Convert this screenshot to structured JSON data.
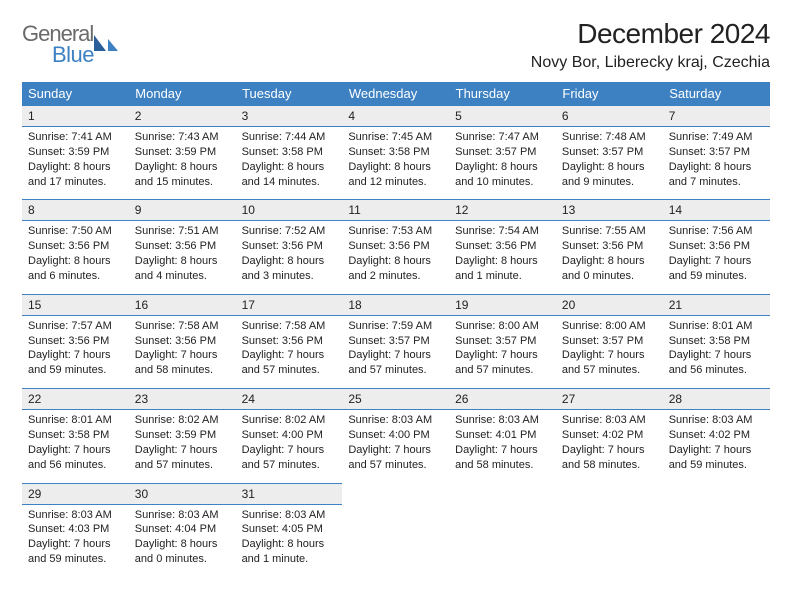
{
  "brand": {
    "word1": "General",
    "word2": "Blue",
    "accent_color": "#3d81c2",
    "gray": "#6a6a6a"
  },
  "title": "December 2024",
  "location": "Novy Bor, Liberecky kraj, Czechia",
  "colors": {
    "header_bg": "#3d81c2",
    "header_fg": "#ffffff",
    "dayhead_bg": "#ededed",
    "border": "#3d81c2",
    "text": "#222222",
    "page_bg": "#ffffff"
  },
  "days_of_week": [
    "Sunday",
    "Monday",
    "Tuesday",
    "Wednesday",
    "Thursday",
    "Friday",
    "Saturday"
  ],
  "weeks": [
    [
      {
        "n": "1",
        "sunrise": "7:41 AM",
        "sunset": "3:59 PM",
        "daylight": "8 hours and 17 minutes."
      },
      {
        "n": "2",
        "sunrise": "7:43 AM",
        "sunset": "3:59 PM",
        "daylight": "8 hours and 15 minutes."
      },
      {
        "n": "3",
        "sunrise": "7:44 AM",
        "sunset": "3:58 PM",
        "daylight": "8 hours and 14 minutes."
      },
      {
        "n": "4",
        "sunrise": "7:45 AM",
        "sunset": "3:58 PM",
        "daylight": "8 hours and 12 minutes."
      },
      {
        "n": "5",
        "sunrise": "7:47 AM",
        "sunset": "3:57 PM",
        "daylight": "8 hours and 10 minutes."
      },
      {
        "n": "6",
        "sunrise": "7:48 AM",
        "sunset": "3:57 PM",
        "daylight": "8 hours and 9 minutes."
      },
      {
        "n": "7",
        "sunrise": "7:49 AM",
        "sunset": "3:57 PM",
        "daylight": "8 hours and 7 minutes."
      }
    ],
    [
      {
        "n": "8",
        "sunrise": "7:50 AM",
        "sunset": "3:56 PM",
        "daylight": "8 hours and 6 minutes."
      },
      {
        "n": "9",
        "sunrise": "7:51 AM",
        "sunset": "3:56 PM",
        "daylight": "8 hours and 4 minutes."
      },
      {
        "n": "10",
        "sunrise": "7:52 AM",
        "sunset": "3:56 PM",
        "daylight": "8 hours and 3 minutes."
      },
      {
        "n": "11",
        "sunrise": "7:53 AM",
        "sunset": "3:56 PM",
        "daylight": "8 hours and 2 minutes."
      },
      {
        "n": "12",
        "sunrise": "7:54 AM",
        "sunset": "3:56 PM",
        "daylight": "8 hours and 1 minute."
      },
      {
        "n": "13",
        "sunrise": "7:55 AM",
        "sunset": "3:56 PM",
        "daylight": "8 hours and 0 minutes."
      },
      {
        "n": "14",
        "sunrise": "7:56 AM",
        "sunset": "3:56 PM",
        "daylight": "7 hours and 59 minutes."
      }
    ],
    [
      {
        "n": "15",
        "sunrise": "7:57 AM",
        "sunset": "3:56 PM",
        "daylight": "7 hours and 59 minutes."
      },
      {
        "n": "16",
        "sunrise": "7:58 AM",
        "sunset": "3:56 PM",
        "daylight": "7 hours and 58 minutes."
      },
      {
        "n": "17",
        "sunrise": "7:58 AM",
        "sunset": "3:56 PM",
        "daylight": "7 hours and 57 minutes."
      },
      {
        "n": "18",
        "sunrise": "7:59 AM",
        "sunset": "3:57 PM",
        "daylight": "7 hours and 57 minutes."
      },
      {
        "n": "19",
        "sunrise": "8:00 AM",
        "sunset": "3:57 PM",
        "daylight": "7 hours and 57 minutes."
      },
      {
        "n": "20",
        "sunrise": "8:00 AM",
        "sunset": "3:57 PM",
        "daylight": "7 hours and 57 minutes."
      },
      {
        "n": "21",
        "sunrise": "8:01 AM",
        "sunset": "3:58 PM",
        "daylight": "7 hours and 56 minutes."
      }
    ],
    [
      {
        "n": "22",
        "sunrise": "8:01 AM",
        "sunset": "3:58 PM",
        "daylight": "7 hours and 56 minutes."
      },
      {
        "n": "23",
        "sunrise": "8:02 AM",
        "sunset": "3:59 PM",
        "daylight": "7 hours and 57 minutes."
      },
      {
        "n": "24",
        "sunrise": "8:02 AM",
        "sunset": "4:00 PM",
        "daylight": "7 hours and 57 minutes."
      },
      {
        "n": "25",
        "sunrise": "8:03 AM",
        "sunset": "4:00 PM",
        "daylight": "7 hours and 57 minutes."
      },
      {
        "n": "26",
        "sunrise": "8:03 AM",
        "sunset": "4:01 PM",
        "daylight": "7 hours and 58 minutes."
      },
      {
        "n": "27",
        "sunrise": "8:03 AM",
        "sunset": "4:02 PM",
        "daylight": "7 hours and 58 minutes."
      },
      {
        "n": "28",
        "sunrise": "8:03 AM",
        "sunset": "4:02 PM",
        "daylight": "7 hours and 59 minutes."
      }
    ],
    [
      {
        "n": "29",
        "sunrise": "8:03 AM",
        "sunset": "4:03 PM",
        "daylight": "7 hours and 59 minutes."
      },
      {
        "n": "30",
        "sunrise": "8:03 AM",
        "sunset": "4:04 PM",
        "daylight": "8 hours and 0 minutes."
      },
      {
        "n": "31",
        "sunrise": "8:03 AM",
        "sunset": "4:05 PM",
        "daylight": "8 hours and 1 minute."
      },
      null,
      null,
      null,
      null
    ]
  ],
  "labels": {
    "sunrise": "Sunrise: ",
    "sunset": "Sunset: ",
    "daylight": "Daylight: "
  }
}
